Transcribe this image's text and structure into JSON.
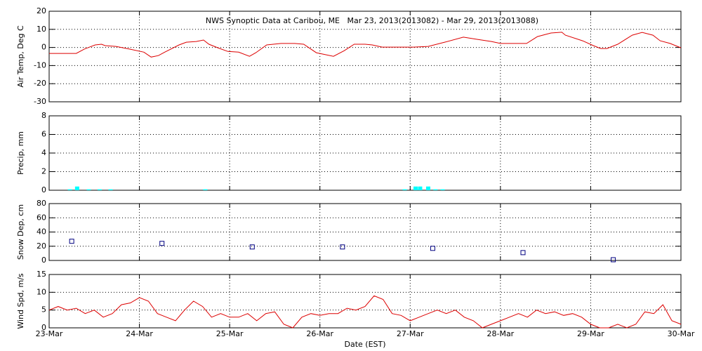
{
  "chart_data": [
    {
      "type": "line",
      "title": "NWS Synoptic Data at Caribou, ME   Mar 23, 2013(2013082) - Mar 29, 2013(2013088)",
      "y_label": "Air Temp, Deg C",
      "color": "#dd0000",
      "x": [
        0,
        0.3,
        0.39,
        0.51,
        0.58,
        0.62,
        0.74,
        0.89,
        1.05,
        1.13,
        1.21,
        1.28,
        1.44,
        1.52,
        1.63,
        1.71,
        1.77,
        1.87,
        1.98,
        2.1,
        2.22,
        2.29,
        2.41,
        2.57,
        2.72,
        2.82,
        2.96,
        3.15,
        3.27,
        3.38,
        3.5,
        3.58,
        3.69,
        3.85,
        4.04,
        4.2,
        4.39,
        4.59,
        4.74,
        4.9,
        5.0,
        5.29,
        5.41,
        5.56,
        5.68,
        5.72,
        5.91,
        6.03,
        6.11,
        6.18,
        6.3,
        6.46,
        6.57,
        6.69,
        6.77,
        6.88,
        7.0
      ],
      "values": [
        -3.3,
        -3.3,
        -0.9,
        1.4,
        1.8,
        1.0,
        0.6,
        -0.9,
        -2.6,
        -5.3,
        -4.5,
        -2.6,
        1.4,
        2.9,
        3.3,
        4.1,
        1.8,
        -0.2,
        -2.2,
        -2.6,
        -4.9,
        -2.9,
        1.4,
        2.2,
        2.2,
        1.8,
        -2.9,
        -4.9,
        -1.8,
        1.8,
        1.8,
        1.4,
        0.2,
        0.2,
        0.2,
        0.6,
        3.0,
        5.7,
        4.5,
        3.3,
        2.2,
        2.2,
        6.0,
        8.0,
        8.4,
        6.8,
        3.7,
        1.0,
        -0.6,
        -0.6,
        1.8,
        6.8,
        8.3,
        6.8,
        3.7,
        2.2,
        -0.2
      ],
      "xlim": [
        0,
        7
      ],
      "xticks": [
        0,
        1,
        2,
        3,
        4,
        5,
        6,
        7
      ],
      "ylim": [
        -30,
        20
      ],
      "yticks": [
        -30,
        -20,
        -10,
        0,
        10,
        20
      ],
      "grid": true
    },
    {
      "type": "bar",
      "y_label": "Precip, mm",
      "color": "#00ffff",
      "x": [
        0.23,
        0.31,
        0.44,
        0.56,
        0.68,
        1.73,
        3.94,
        4.06,
        4.11,
        4.2,
        4.28,
        4.36
      ],
      "values": [
        0.1,
        0.4,
        0.1,
        0.1,
        0.1,
        0.1,
        0.1,
        0.4,
        0.4,
        0.4,
        0.1,
        0.1
      ],
      "xlim": [
        0,
        7
      ],
      "xticks": [
        0,
        1,
        2,
        3,
        4,
        5,
        6,
        7
      ],
      "ylim": [
        0,
        8
      ],
      "yticks": [
        0,
        2,
        4,
        6,
        8
      ],
      "grid": true
    },
    {
      "type": "scatter",
      "y_label": "Snow Dep, cm",
      "color": "#000080",
      "x": [
        0.25,
        1.25,
        2.25,
        3.25,
        4.25,
        5.25,
        6.25
      ],
      "values": [
        27,
        24,
        19,
        19,
        17,
        11,
        1
      ],
      "xlim": [
        0,
        7
      ],
      "xticks": [
        0,
        1,
        2,
        3,
        4,
        5,
        6,
        7
      ],
      "ylim": [
        0,
        80
      ],
      "yticks": [
        0,
        20,
        40,
        60,
        80
      ],
      "grid": true
    },
    {
      "type": "line",
      "y_label": "Wind Spd, m/s",
      "x_label": "Date (EST)",
      "color": "#dd0000",
      "x": [
        0,
        0.1,
        0.2,
        0.3,
        0.4,
        0.5,
        0.6,
        0.7,
        0.8,
        0.9,
        1.0,
        1.1,
        1.2,
        1.3,
        1.4,
        1.5,
        1.6,
        1.7,
        1.8,
        1.9,
        2.0,
        2.1,
        2.2,
        2.3,
        2.4,
        2.5,
        2.6,
        2.7,
        2.8,
        2.9,
        3.0,
        3.1,
        3.2,
        3.3,
        3.4,
        3.5,
        3.6,
        3.7,
        3.8,
        3.9,
        4.0,
        4.1,
        4.2,
        4.3,
        4.4,
        4.5,
        4.6,
        4.7,
        4.8,
        4.9,
        5.0,
        5.1,
        5.2,
        5.3,
        5.4,
        5.5,
        5.6,
        5.7,
        5.8,
        5.9,
        6.0,
        6.1,
        6.2,
        6.3,
        6.4,
        6.5,
        6.6,
        6.7,
        6.8,
        6.9,
        7.0
      ],
      "values": [
        5,
        6,
        5,
        5.5,
        4,
        5,
        3,
        4,
        6.5,
        7,
        8.5,
        7.5,
        4,
        3,
        2,
        5,
        7.5,
        6,
        3,
        4,
        3,
        3,
        4,
        2,
        4,
        4.5,
        1,
        0,
        3,
        4,
        3.5,
        4,
        4,
        5.5,
        5,
        6,
        9,
        8,
        4,
        3.5,
        2,
        3,
        4,
        5,
        4,
        5,
        3,
        2,
        0,
        1,
        2,
        3,
        4,
        3,
        5,
        4,
        4.5,
        3.5,
        4,
        3,
        1,
        0,
        0,
        1,
        0,
        1,
        4.5,
        4,
        6.5,
        2,
        1
      ],
      "xlim": [
        0,
        7
      ],
      "xticks": [
        {
          "value": 0,
          "label": "23-Mar"
        },
        {
          "value": 1,
          "label": "24-Mar"
        },
        {
          "value": 2,
          "label": "25-Mar"
        },
        {
          "value": 3,
          "label": "26-Mar"
        },
        {
          "value": 4,
          "label": "27-Mar"
        },
        {
          "value": 5,
          "label": "28-Mar"
        },
        {
          "value": 6,
          "label": "29-Mar"
        },
        {
          "value": 7,
          "label": "30-Mar"
        }
      ],
      "ylim": [
        0,
        15
      ],
      "yticks": [
        0,
        5,
        10,
        15
      ],
      "grid": true
    }
  ]
}
